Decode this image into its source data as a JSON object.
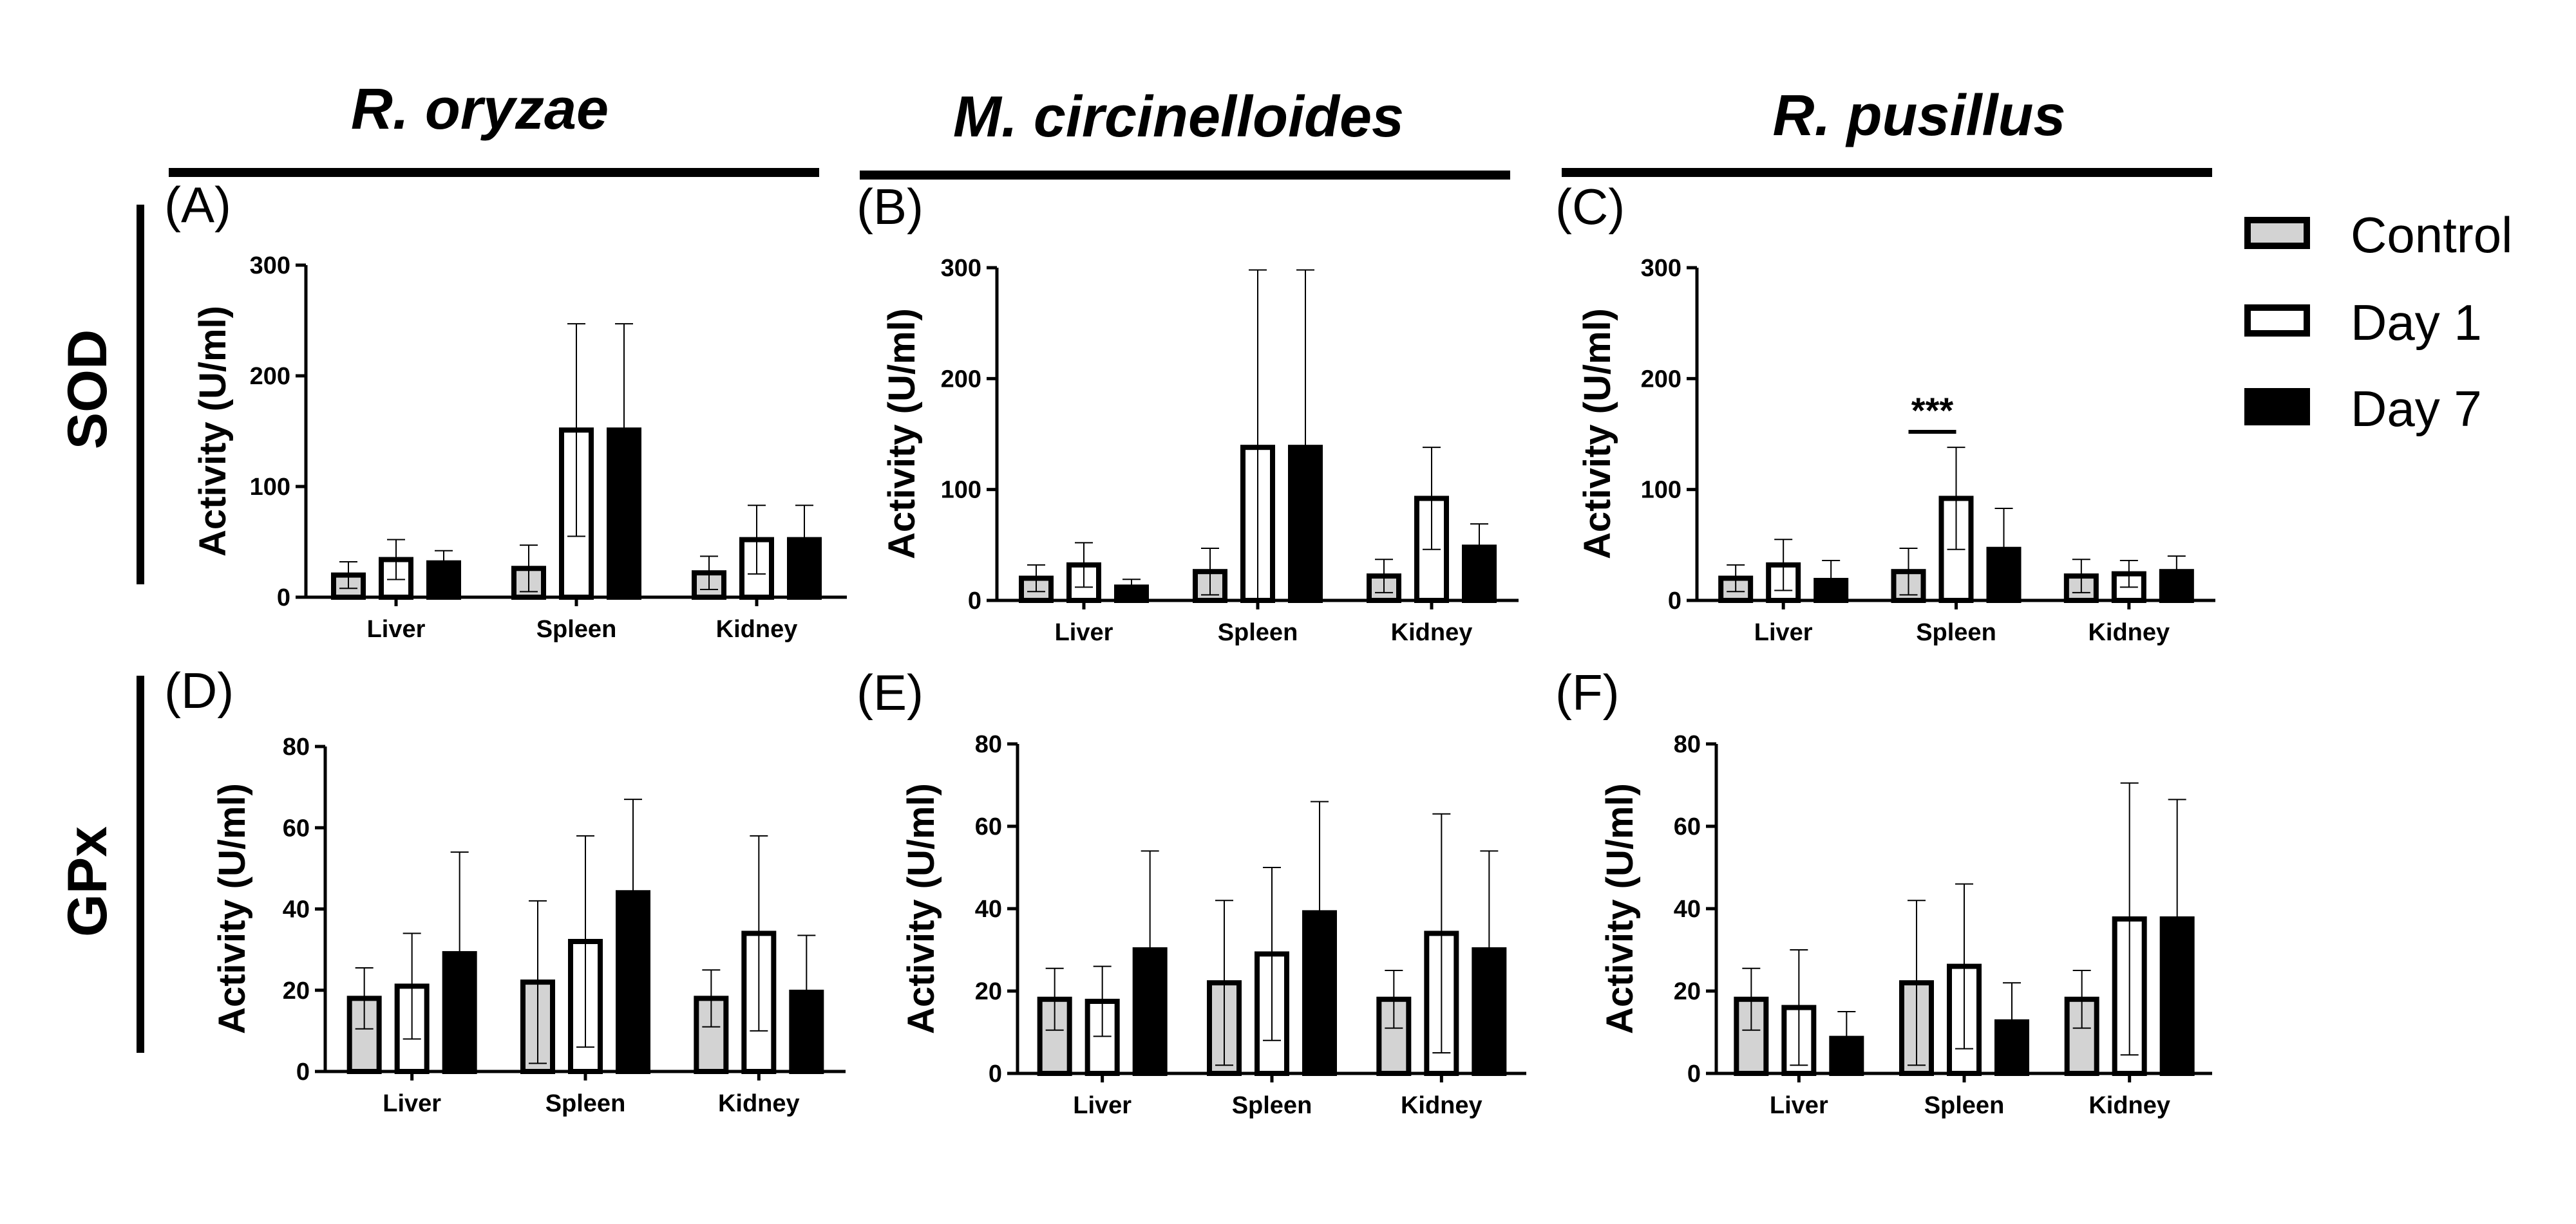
{
  "figure": {
    "column_headers": [
      "R. oryzae",
      "M. circinelloides",
      "R. pusillus"
    ],
    "row_labels": [
      "SOD",
      "GPx"
    ],
    "legend": [
      {
        "label": "Control",
        "color": "#d3d3d3"
      },
      {
        "label": "Day 1",
        "color": "#ffffff"
      },
      {
        "label": "Day 7",
        "color": "#000000"
      }
    ]
  },
  "chart_data": [
    {
      "type": "bar",
      "panel": "(A)",
      "ylabel": "Activity (U/ml)",
      "ylim": [
        0,
        300
      ],
      "yticks": [
        0,
        100,
        200,
        300
      ],
      "categories": [
        "Liver",
        "Spleen",
        "Kidney"
      ],
      "series": [
        {
          "name": "Control",
          "values": [
            20,
            26,
            22
          ],
          "errors": [
            12,
            21,
            15
          ]
        },
        {
          "name": "Day 1",
          "values": [
            34,
            151,
            52
          ],
          "errors": [
            18,
            96,
            31
          ]
        },
        {
          "name": "Day 7",
          "values": [
            31,
            151,
            52
          ],
          "errors": [
            11,
            96,
            31
          ]
        }
      ],
      "annotations": []
    },
    {
      "type": "bar",
      "panel": "(B)",
      "ylabel": "Activity (U/ml)",
      "ylim": [
        0,
        300
      ],
      "yticks": [
        0,
        100,
        200,
        300
      ],
      "categories": [
        "Liver",
        "Spleen",
        "Kidney"
      ],
      "series": [
        {
          "name": "Control",
          "values": [
            20,
            26,
            22
          ],
          "errors": [
            12,
            21,
            15
          ]
        },
        {
          "name": "Day 1",
          "values": [
            32,
            138,
            92
          ],
          "errors": [
            20,
            160,
            46
          ]
        },
        {
          "name": "Day 7",
          "values": [
            12,
            138,
            48
          ],
          "errors": [
            7,
            160,
            21
          ]
        }
      ],
      "annotations": []
    },
    {
      "type": "bar",
      "panel": "(C)",
      "ylabel": "Activity (U/ml)",
      "ylim": [
        0,
        300
      ],
      "yticks": [
        0,
        100,
        200,
        300
      ],
      "categories": [
        "Liver",
        "Spleen",
        "Kidney"
      ],
      "series": [
        {
          "name": "Control",
          "values": [
            20,
            26,
            22
          ],
          "errors": [
            12,
            21,
            15
          ]
        },
        {
          "name": "Day 1",
          "values": [
            32,
            92,
            24
          ],
          "errors": [
            23,
            46,
            12
          ]
        },
        {
          "name": "Day 7",
          "values": [
            18,
            46,
            26
          ],
          "errors": [
            18,
            37,
            14
          ]
        }
      ],
      "annotations": [
        {
          "text": "***",
          "category": "Spleen",
          "from_series": 0,
          "to_series": 1,
          "y": 152
        }
      ]
    },
    {
      "type": "bar",
      "panel": "(D)",
      "ylabel": "Activity (U/ml)",
      "ylim": [
        0,
        80
      ],
      "yticks": [
        0,
        20,
        40,
        60,
        80
      ],
      "categories": [
        "Liver",
        "Spleen",
        "Kidney"
      ],
      "series": [
        {
          "name": "Control",
          "values": [
            18,
            22,
            18
          ],
          "errors": [
            7.5,
            20,
            7
          ]
        },
        {
          "name": "Day 1",
          "values": [
            21,
            32,
            34
          ],
          "errors": [
            13,
            26,
            24
          ]
        },
        {
          "name": "Day 7",
          "values": [
            29,
            44,
            19.5
          ],
          "errors": [
            25,
            23,
            14
          ]
        }
      ],
      "annotations": []
    },
    {
      "type": "bar",
      "panel": "(E)",
      "ylabel": "Activity (U/ml)",
      "ylim": [
        0,
        80
      ],
      "yticks": [
        0,
        20,
        40,
        60,
        80
      ],
      "categories": [
        "Liver",
        "Spleen",
        "Kidney"
      ],
      "series": [
        {
          "name": "Control",
          "values": [
            18,
            22,
            18
          ],
          "errors": [
            7.5,
            20,
            7
          ]
        },
        {
          "name": "Day 1",
          "values": [
            17.5,
            29,
            34
          ],
          "errors": [
            8.5,
            21,
            29
          ]
        },
        {
          "name": "Day 7",
          "values": [
            30,
            39,
            30
          ],
          "errors": [
            24,
            27,
            24
          ]
        }
      ],
      "annotations": []
    },
    {
      "type": "bar",
      "panel": "(F)",
      "ylabel": "Activity (U/ml)",
      "ylim": [
        0,
        80
      ],
      "yticks": [
        0,
        20,
        40,
        60,
        80
      ],
      "categories": [
        "Liver",
        "Spleen",
        "Kidney"
      ],
      "series": [
        {
          "name": "Control",
          "values": [
            18,
            22,
            18
          ],
          "errors": [
            7.5,
            20,
            7
          ]
        },
        {
          "name": "Day 1",
          "values": [
            16,
            26,
            37.5
          ],
          "errors": [
            14,
            20,
            33
          ]
        },
        {
          "name": "Day 7",
          "values": [
            8.5,
            12.5,
            37.5
          ],
          "errors": [
            6.5,
            9.5,
            29
          ]
        }
      ],
      "annotations": []
    }
  ]
}
